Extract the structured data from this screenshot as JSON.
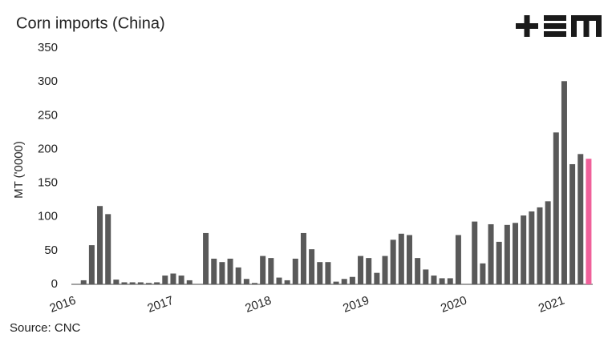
{
  "chart_data": {
    "type": "bar",
    "title": "Corn imports (China)",
    "y_label": "MT ('0000)",
    "source": "Source: CNC",
    "categories": [
      "2016",
      null,
      null,
      null,
      null,
      null,
      null,
      null,
      null,
      null,
      null,
      null,
      "2017",
      null,
      null,
      null,
      null,
      null,
      null,
      null,
      null,
      null,
      null,
      null,
      "2018",
      null,
      null,
      null,
      null,
      null,
      null,
      null,
      null,
      null,
      null,
      null,
      "2019",
      null,
      null,
      null,
      null,
      null,
      null,
      null,
      null,
      null,
      null,
      null,
      "2020",
      null,
      null,
      null,
      null,
      null,
      null,
      null,
      null,
      null,
      null,
      null,
      "2021",
      null,
      null,
      null
    ],
    "values": [
      0,
      6,
      58,
      116,
      104,
      7,
      3,
      3,
      3,
      2,
      3,
      13,
      16,
      13,
      6,
      0,
      76,
      38,
      33,
      38,
      25,
      8,
      2,
      42,
      39,
      10,
      6,
      38,
      76,
      52,
      33,
      33,
      4,
      8,
      11,
      42,
      39,
      17,
      42,
      66,
      75,
      73,
      39,
      22,
      13,
      9,
      9,
      73,
      0,
      93,
      31,
      89,
      63,
      88,
      91,
      102,
      108,
      114,
      123,
      225,
      301,
      178,
      193,
      186
    ],
    "color": "#595959",
    "last_color": "#f0609a",
    "ylim": [
      0,
      350
    ],
    "yticks": [
      0,
      50,
      100,
      150,
      200,
      250,
      300,
      350
    ],
    "grid": false
  }
}
